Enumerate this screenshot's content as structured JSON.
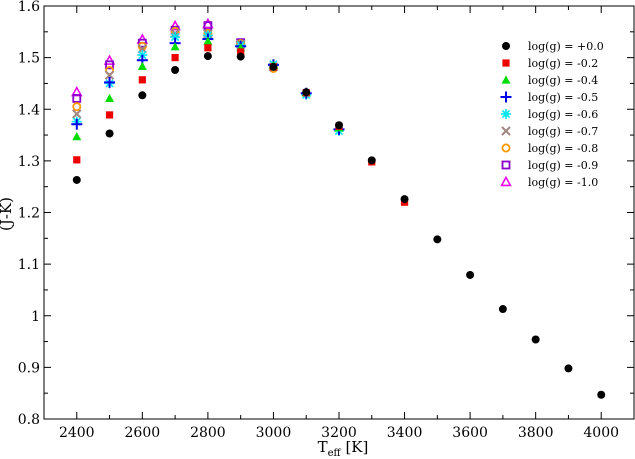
{
  "chart_data": {
    "type": "scatter",
    "xlabel_main": "T",
    "xlabel_sub": "eff",
    "xlabel_unit": " [K]",
    "ylabel": "(J-K)",
    "xlim": [
      2300,
      4100
    ],
    "ylim": [
      0.8,
      1.6
    ],
    "x_ticks": [
      2400,
      2600,
      2800,
      3000,
      3200,
      3400,
      3600,
      3800,
      4000
    ],
    "y_ticks": [
      0.8,
      0.9,
      1.0,
      1.1,
      1.2,
      1.3,
      1.4,
      1.5,
      1.6
    ],
    "y_tick_labels": [
      "0.8",
      "0.9",
      "1",
      "1.1",
      "1.2",
      "1.3",
      "1.4",
      "1.5",
      "1.6"
    ],
    "legend_position": "top-right",
    "series": [
      {
        "name": "log(g) = +0.0",
        "marker": "filled-circle",
        "color": "#000000",
        "x": [
          2400,
          2500,
          2600,
          2700,
          2800,
          2900,
          3000,
          3100,
          3200,
          3300,
          3400,
          3500,
          3600,
          3700,
          3800,
          3900,
          4000
        ],
        "y": [
          1.263,
          1.353,
          1.427,
          1.476,
          1.503,
          1.502,
          1.482,
          1.433,
          1.369,
          1.301,
          1.226,
          1.148,
          1.079,
          1.013,
          0.954,
          0.898,
          0.847
        ]
      },
      {
        "name": "log(g) = -0.2",
        "marker": "filled-square",
        "color": "#ee0000",
        "x": [
          2400,
          2500,
          2600,
          2700,
          2800,
          2900,
          3000,
          3100,
          3200,
          3300,
          3400
        ],
        "y": [
          1.302,
          1.389,
          1.457,
          1.5,
          1.519,
          1.511,
          1.482,
          1.432,
          1.367,
          1.298,
          1.22
        ]
      },
      {
        "name": "log(g) = -0.4",
        "marker": "filled-triangle",
        "color": "#00dd00",
        "x": [
          2400,
          2500,
          2600,
          2700,
          2800,
          2900,
          3000,
          3100,
          3200
        ],
        "y": [
          1.347,
          1.421,
          1.483,
          1.521,
          1.532,
          1.519,
          1.485,
          1.432,
          1.364
        ]
      },
      {
        "name": "log(g) = -0.5",
        "marker": "plus",
        "color": "#0000ee",
        "x": [
          2400,
          2500,
          2600,
          2700,
          2800,
          2900,
          3000,
          3100,
          3200
        ],
        "y": [
          1.371,
          1.452,
          1.495,
          1.528,
          1.536,
          1.522,
          1.486,
          1.431,
          1.361
        ]
      },
      {
        "name": "log(g) = -0.6",
        "marker": "asterisk",
        "color": "#00e5ee",
        "x": [
          2400,
          2500,
          2600,
          2700,
          2800,
          2900,
          3000,
          3100,
          3200
        ],
        "y": [
          1.376,
          1.45,
          1.505,
          1.54,
          1.543,
          1.524,
          1.487,
          1.428,
          1.358
        ]
      },
      {
        "name": "log(g) = -0.7",
        "marker": "x",
        "color": "#a0847e",
        "x": [
          2400,
          2500,
          2600,
          2700,
          2800,
          2900,
          3000
        ],
        "y": [
          1.391,
          1.466,
          1.517,
          1.547,
          1.546,
          1.526,
          1.482
        ]
      },
      {
        "name": "log(g) = -0.8",
        "marker": "open-circle",
        "color": "#ff9900",
        "x": [
          2400,
          2500,
          2600,
          2700,
          2800,
          2900,
          3000
        ],
        "y": [
          1.405,
          1.475,
          1.522,
          1.551,
          1.547,
          1.527,
          1.479
        ]
      },
      {
        "name": "log(g) = -0.9",
        "marker": "open-square",
        "color": "#8800cc",
        "x": [
          2400,
          2500,
          2600,
          2700,
          2800,
          2900
        ],
        "y": [
          1.421,
          1.486,
          1.528,
          1.553,
          1.562,
          1.529
        ]
      },
      {
        "name": "log(g) = -1.0",
        "marker": "open-triangle",
        "color": "#ee00ee",
        "x": [
          2400,
          2500,
          2600,
          2700,
          2800
        ],
        "y": [
          1.433,
          1.494,
          1.535,
          1.561,
          1.565
        ]
      }
    ]
  }
}
